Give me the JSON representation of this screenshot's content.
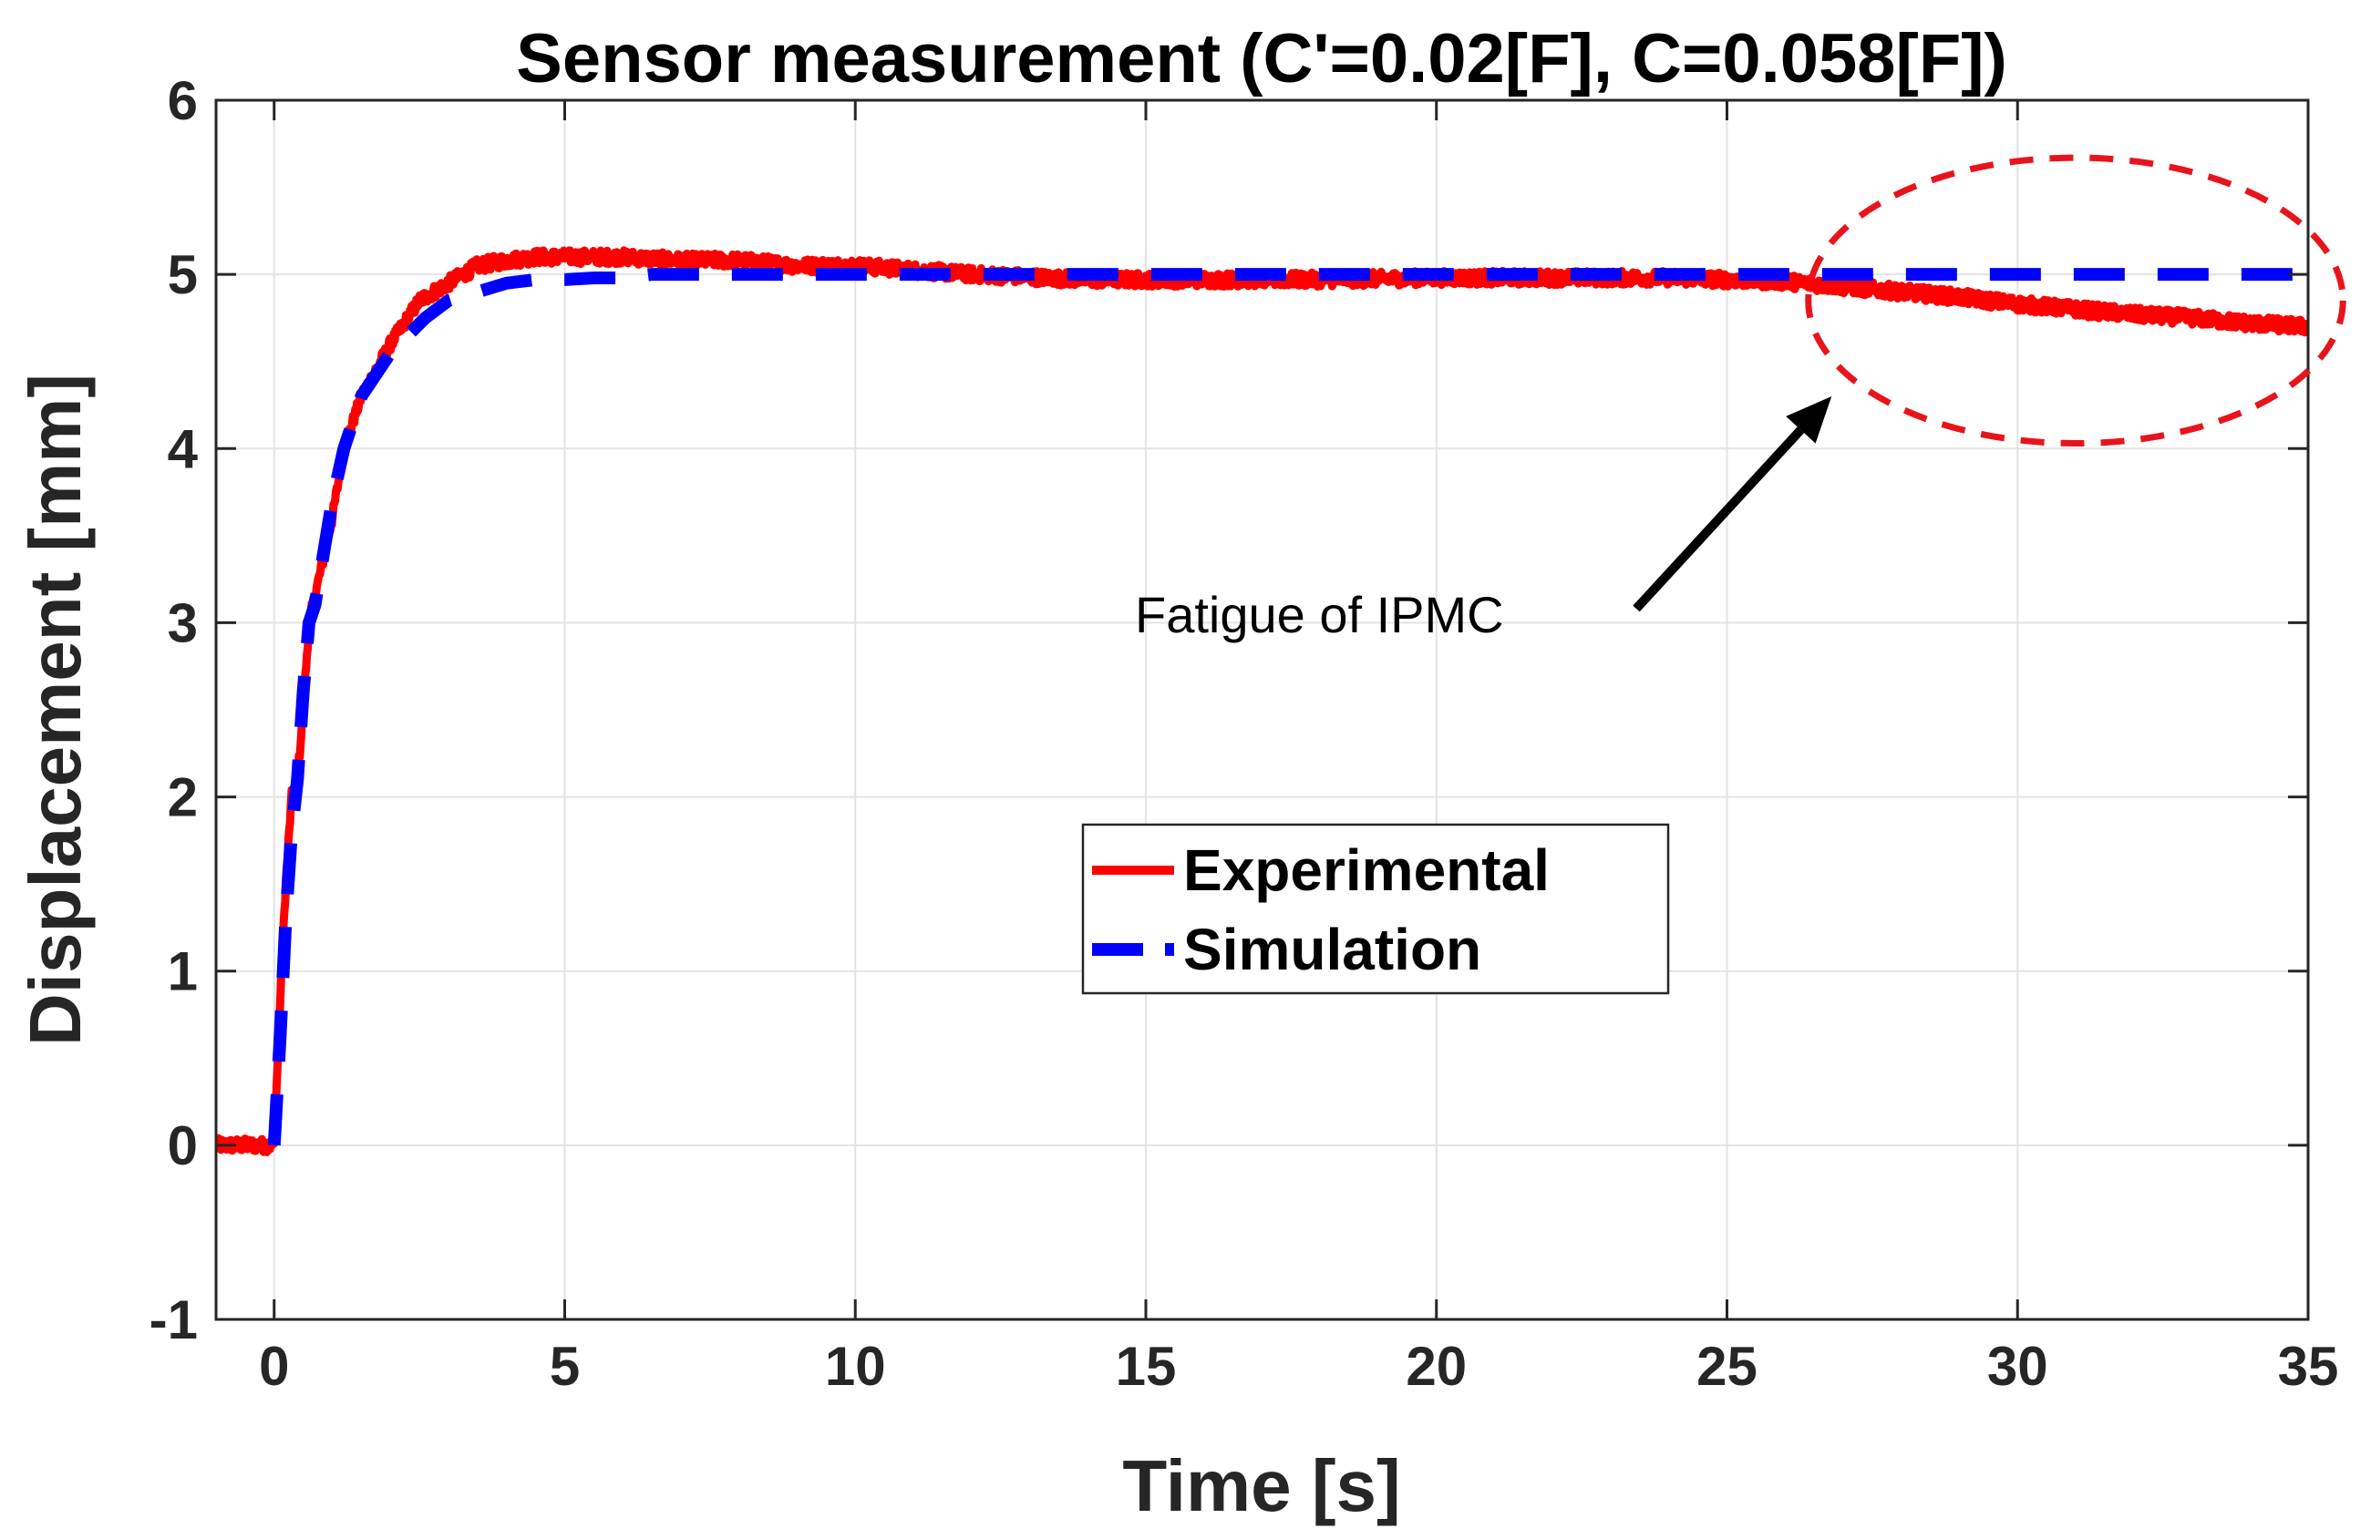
{
  "chart_data": {
    "type": "line",
    "title": "Sensor measurement (C'=0.02[F], C=0.058[F])",
    "xlabel": "Time [s]",
    "ylabel": "Displacement [mm]",
    "xlim": [
      -1,
      35
    ],
    "ylim": [
      -1,
      6
    ],
    "xticks": [
      0,
      5,
      10,
      15,
      20,
      25,
      30,
      35
    ],
    "yticks": [
      -1,
      0,
      1,
      2,
      3,
      4,
      5,
      6
    ],
    "xtick_labels": [
      "0",
      "5",
      "10",
      "15",
      "20",
      "25",
      "30",
      "35"
    ],
    "ytick_labels": [
      "-1",
      "0",
      "1",
      "2",
      "3",
      "4",
      "5",
      "6"
    ],
    "grid": true,
    "legend_position": "center",
    "series": [
      {
        "name": "Experimental",
        "color": "#ff0000",
        "style": "solid",
        "noise": 0.04,
        "x": [
          -1,
          -0.5,
          0,
          0.1,
          0.2,
          0.3,
          0.4,
          0.5,
          0.6,
          0.8,
          1.0,
          1.2,
          1.5,
          2.0,
          2.5,
          3.0,
          3.5,
          4.0,
          4.5,
          5.0,
          6,
          7,
          8,
          9,
          10,
          12,
          14,
          16,
          18,
          20,
          22,
          24,
          26,
          27,
          28,
          29,
          30,
          31,
          32,
          33,
          34,
          35
        ],
        "y": [
          0,
          0,
          0,
          0.8,
          1.5,
          2.0,
          2.1,
          2.5,
          3.0,
          3.3,
          3.6,
          4.0,
          4.3,
          4.6,
          4.85,
          4.95,
          5.05,
          5.08,
          5.1,
          5.1,
          5.1,
          5.08,
          5.08,
          5.05,
          5.05,
          5.0,
          4.97,
          4.97,
          4.97,
          4.98,
          4.98,
          4.98,
          4.96,
          4.93,
          4.9,
          4.87,
          4.83,
          4.8,
          4.77,
          4.75,
          4.72,
          4.7
        ]
      },
      {
        "name": "Simulation",
        "color": "#0000ff",
        "style": "dashed",
        "noise": 0,
        "x": [
          0,
          0.1,
          0.2,
          0.3,
          0.4,
          0.5,
          0.6,
          0.7,
          0.8,
          1.0,
          1.2,
          1.5,
          1.8,
          2.0,
          2.3,
          2.6,
          3.0,
          3.5,
          4.0,
          4.5,
          5.0,
          5.5,
          6,
          6.5,
          7,
          7.5,
          8,
          9,
          10,
          12,
          15,
          20,
          25,
          30,
          35
        ],
        "y": [
          0,
          0.6,
          1.3,
          1.8,
          2.1,
          2.6,
          3.0,
          3.1,
          3.3,
          3.7,
          4.0,
          4.3,
          4.45,
          4.55,
          4.65,
          4.75,
          4.85,
          4.9,
          4.95,
          4.97,
          4.97,
          4.98,
          4.98,
          5.0,
          5.0,
          5.0,
          5.0,
          5.0,
          5.0,
          5.0,
          5.0,
          5.0,
          5.0,
          5.0,
          5.0
        ]
      }
    ],
    "annotation": {
      "text": "Fatigue of IPMC",
      "arrow_tip": [
        26.8,
        4.3
      ],
      "ellipse_center": [
        31,
        4.85
      ],
      "ellipse_radius_x": 4.6,
      "ellipse_radius_y": 0.82,
      "ellipse_color": "#e8141c"
    }
  }
}
